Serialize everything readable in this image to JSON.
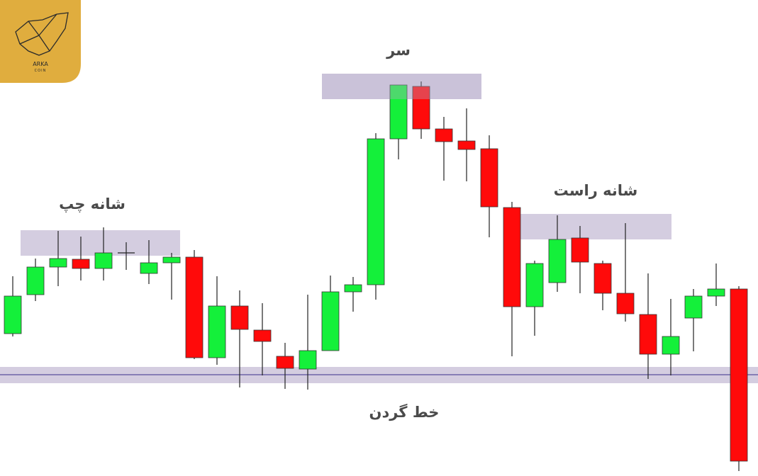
{
  "chart_data": {
    "type": "candlestick",
    "labels": {
      "head": "سر",
      "left_shoulder": "شانه چپ",
      "right_shoulder": "شانه راست",
      "neckline": "خط گردن"
    },
    "logo": {
      "name": "ARKA",
      "sub": "COIN"
    },
    "categories": [
      null,
      null,
      null,
      null,
      null,
      null,
      null,
      null,
      null,
      null,
      null,
      null,
      null,
      null,
      null,
      null,
      null,
      null,
      null,
      null,
      null,
      null,
      null,
      null,
      null,
      null,
      null,
      null,
      null,
      null,
      null,
      null,
      null
    ],
    "open": [
      201,
      256,
      295,
      306,
      293,
      315,
      286,
      301,
      309,
      167,
      240,
      206,
      169,
      151,
      177,
      260,
      270,
      476,
      550,
      490,
      473,
      462,
      379,
      239,
      273,
      336,
      300,
      258,
      228,
      172,
      223,
      254,
      264
    ],
    "close": [
      254,
      295,
      307,
      293,
      315,
      315,
      301,
      309,
      167,
      240,
      207,
      190,
      152,
      177,
      260,
      270,
      476,
      552,
      490,
      472,
      461,
      380,
      239,
      300,
      334,
      302,
      258,
      229,
      172,
      197,
      254,
      264,
      21
    ],
    "high": [
      282,
      307,
      346,
      338,
      351,
      330,
      333,
      315,
      319,
      282,
      262,
      244,
      188,
      256,
      283,
      281,
      484,
      552,
      557,
      507,
      519,
      481,
      387,
      304,
      368,
      353,
      304,
      357,
      286,
      250,
      264,
      300,
      268
    ],
    "low": [
      197,
      247,
      268,
      276,
      276,
      291,
      271,
      249,
      165,
      157,
      125,
      142,
      123,
      122,
      177,
      232,
      249,
      447,
      476,
      417,
      416,
      337,
      169,
      198,
      260,
      258,
      234,
      218,
      137,
      142,
      176,
      240,
      7
    ],
    "up_color": "#14f03a",
    "down_color": "#ff0a0a",
    "ylim": [
      0,
      672
    ]
  }
}
